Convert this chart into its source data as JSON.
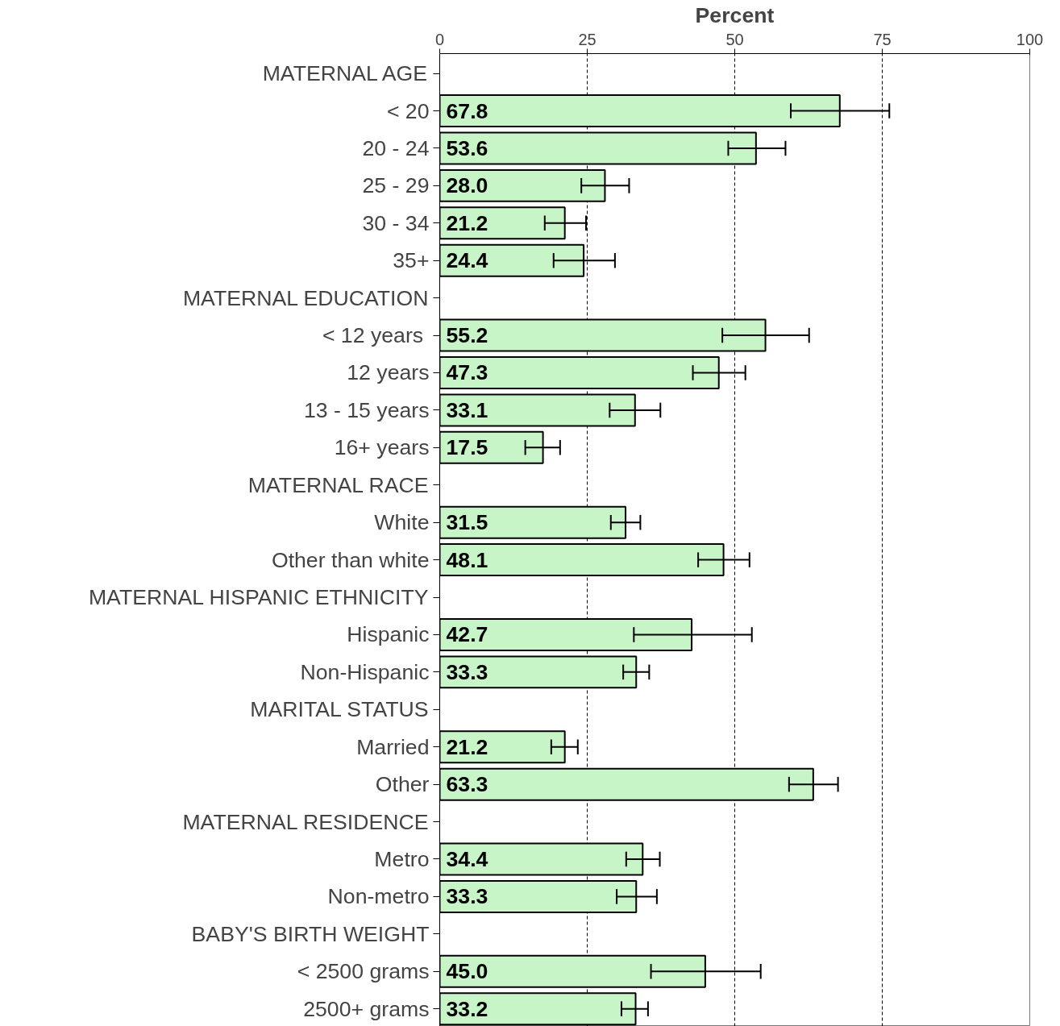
{
  "chart_data": {
    "type": "bar",
    "orientation": "horizontal",
    "xlabel": "Percent",
    "categories": [
      "MATERNAL AGE",
      "< 20",
      "20 - 24",
      "25 - 29",
      "30 - 34",
      "35+",
      "MATERNAL EDUCATION",
      "< 12  years",
      "12 years",
      "13 - 15 years",
      "16+ years",
      "MATERNAL RACE",
      "White",
      "Other than white",
      "MATERNAL HISPANIC ETHNICITY",
      "Hispanic",
      "Non-Hispanic",
      "MARITAL STATUS",
      "Married",
      "Other",
      "MATERNAL RESIDENCE",
      "Metro",
      "Non-metro",
      "BABY'S BIRTH WEIGHT",
      "< 2500 grams",
      "2500+ grams"
    ],
    "values": [
      null,
      67.8,
      53.6,
      28.0,
      21.2,
      24.4,
      null,
      55.2,
      47.3,
      33.1,
      17.5,
      null,
      31.5,
      48.1,
      null,
      42.7,
      33.3,
      null,
      21.2,
      63.3,
      null,
      34.4,
      33.3,
      null,
      45.0,
      33.2
    ],
    "errors": [
      null,
      [
        59.5,
        76.2
      ],
      [
        48.9,
        58.6
      ],
      [
        24.0,
        32.1
      ],
      [
        17.8,
        24.8
      ],
      [
        19.3,
        29.7
      ],
      null,
      [
        47.9,
        62.6
      ],
      [
        42.9,
        51.8
      ],
      [
        28.8,
        37.4
      ],
      [
        14.5,
        20.4
      ],
      null,
      [
        29.0,
        34.0
      ],
      [
        43.8,
        52.5
      ],
      null,
      [
        32.9,
        52.9
      ],
      [
        31.1,
        35.5
      ],
      null,
      [
        18.9,
        23.4
      ],
      [
        59.2,
        67.5
      ],
      null,
      [
        31.6,
        37.3
      ],
      [
        30.0,
        36.8
      ],
      null,
      [
        35.8,
        54.4
      ],
      [
        30.8,
        35.3
      ]
    ],
    "value_labels": [
      null,
      "67.8",
      "53.6",
      "28.0",
      "21.2",
      "24.4",
      null,
      "55.2",
      "47.3",
      "33.1",
      "17.5",
      null,
      "31.5",
      "48.1",
      null,
      "42.7",
      "33.3",
      null,
      "21.2",
      "63.3",
      null,
      "34.4",
      "33.3",
      null,
      "45.0",
      "33.2"
    ],
    "color": "#c8f5c8",
    "xlim": [
      0,
      100
    ],
    "xticks": [
      0,
      25,
      50,
      75,
      100
    ],
    "grid": "x"
  }
}
